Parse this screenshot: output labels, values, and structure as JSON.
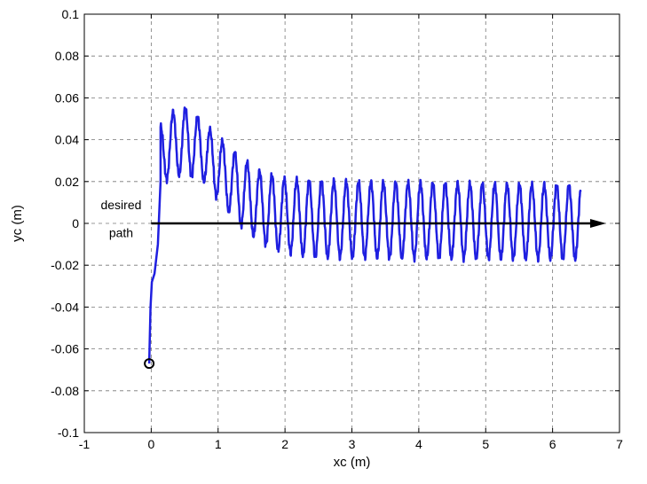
{
  "chart_data": {
    "type": "line",
    "title": "",
    "xlabel": "xc (m)",
    "ylabel": "yc (m)",
    "xlim": [
      -1,
      7
    ],
    "ylim": [
      -0.1,
      0.1
    ],
    "xticks": [
      -1,
      0,
      1,
      2,
      3,
      4,
      5,
      6,
      7
    ],
    "yticks": [
      -0.1,
      -0.08,
      -0.06,
      -0.04,
      -0.02,
      0,
      0.02,
      0.04,
      0.06,
      0.08,
      0.1
    ],
    "xtick_labels": [
      "-1",
      "0",
      "1",
      "2",
      "3",
      "4",
      "5",
      "6",
      "7"
    ],
    "ytick_labels": [
      "-0.1",
      "-0.08",
      "-0.06",
      "-0.04",
      "-0.02",
      "0",
      "0.02",
      "0.04",
      "0.06",
      "0.08",
      "0.1"
    ],
    "grid": true,
    "series_color": "#1f1fe0",
    "trajectory": {
      "start": [
        -0.03,
        -0.067
      ],
      "initial_rise": [
        [
          -0.03,
          -0.067
        ],
        [
          -0.01,
          -0.04
        ],
        [
          0.01,
          -0.028
        ],
        [
          0.05,
          -0.024
        ],
        [
          0.1,
          -0.01
        ],
        [
          0.14,
          0.02
        ]
      ],
      "oscillation": {
        "x_start": 0.14,
        "x_end": 6.42,
        "period": 0.185,
        "upper_envelope": [
          [
            0.14,
            0.046
          ],
          [
            0.4,
            0.056
          ],
          [
            0.6,
            0.054
          ],
          [
            0.9,
            0.044
          ],
          [
            1.2,
            0.035
          ],
          [
            1.6,
            0.025
          ],
          [
            2.0,
            0.021
          ],
          [
            2.6,
            0.02
          ],
          [
            6.42,
            0.018
          ]
        ],
        "lower_envelope": [
          [
            0.14,
            0.02
          ],
          [
            0.5,
            0.024
          ],
          [
            0.8,
            0.02
          ],
          [
            1.1,
            0.008
          ],
          [
            1.4,
            -0.003
          ],
          [
            1.8,
            -0.012
          ],
          [
            2.4,
            -0.016
          ],
          [
            6.42,
            -0.017
          ]
        ]
      }
    },
    "start_marker": {
      "x": -0.03,
      "y": -0.067
    },
    "desired_path": {
      "x_start": 0.0,
      "x_end": 6.8,
      "y": 0
    },
    "annotations": [
      {
        "text": "desired",
        "x": -0.45,
        "y": 0.005
      },
      {
        "text": "path",
        "x": -0.45,
        "y": -0.004
      }
    ]
  }
}
